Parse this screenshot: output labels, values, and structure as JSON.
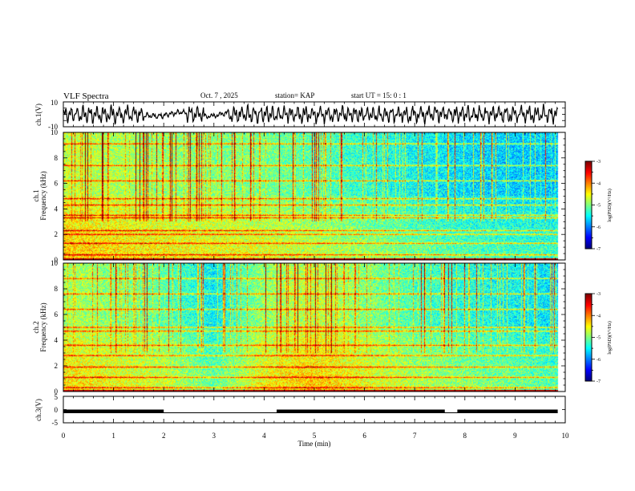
{
  "header": {
    "title": "VLF Spectra",
    "date": "Oct. 7 , 2025",
    "station": "station= KAP",
    "start": "start  UT =   15: 0  : 1"
  },
  "chart_data": {
    "type": "spectrogram",
    "x_axis": {
      "label": "Time  (min)",
      "range": [
        0,
        10
      ],
      "ticks": [
        "0",
        "1",
        "2",
        "3",
        "4",
        "5",
        "6",
        "7",
        "8",
        "9",
        "10"
      ],
      "data_end": 9.85
    },
    "panels": [
      {
        "id": "ch1-waveform",
        "type": "line",
        "ylabel": "ch.1(V)",
        "ylim": [
          -10,
          10
        ],
        "ticks": [
          "10",
          "-10"
        ],
        "quiet_intervals_min": [
          [
            1.65,
            2.45
          ],
          [
            2.8,
            3.3
          ]
        ]
      },
      {
        "id": "ch1-spectrogram",
        "type": "heatmap",
        "ylabel_channel": "ch.1",
        "ylabel": "Frequency  (kHz)",
        "ylim": [
          0,
          10
        ],
        "ticks": [
          "0",
          "2",
          "4",
          "6",
          "8",
          "10"
        ],
        "colorbar": {
          "label": "log(PSD)(V²/Hz)",
          "range": [
            -7,
            -3
          ],
          "ticks": [
            "-3",
            "-4",
            "-5",
            "-6",
            "-7"
          ]
        },
        "persistent_lines_khz": [
          0.4,
          1.3,
          2.0,
          2.3,
          3.3,
          3.5,
          4.3,
          4.8,
          6.2,
          7.4,
          9.1
        ],
        "base_level": [
          [
            0,
            -4.6
          ],
          [
            2,
            -4.8
          ],
          [
            4,
            -4.9
          ],
          [
            6,
            -5.2
          ],
          [
            8,
            -5.5
          ],
          [
            10,
            -5.6
          ]
        ]
      },
      {
        "id": "ch2-spectrogram",
        "type": "heatmap",
        "ylabel_channel": "ch.2",
        "ylabel": "Frequency  (kHz)",
        "ylim": [
          0,
          10
        ],
        "ticks": [
          "0",
          "2",
          "4",
          "6",
          "8",
          "10"
        ],
        "colorbar": {
          "label": "log(PSD)(V²/Hz)",
          "range": [
            -7,
            -3
          ],
          "ticks": [
            "-3",
            "-4",
            "-5",
            "-6",
            "-7"
          ]
        },
        "persistent_lines_khz": [
          0.3,
          1.1,
          1.9,
          2.8,
          3.6,
          4.7,
          5.0,
          6.4,
          7.6,
          8.8
        ],
        "base_level": [
          [
            0,
            -4.7
          ],
          [
            2,
            -5.0
          ],
          [
            3,
            -5.4
          ],
          [
            4,
            -4.8
          ],
          [
            5,
            -4.6
          ],
          [
            7,
            -5.1
          ],
          [
            10,
            -5.5
          ]
        ]
      },
      {
        "id": "ch3-digital",
        "type": "line",
        "ylabel": "ch.3(V)",
        "ylim": [
          -5,
          5
        ],
        "ticks": [
          "5",
          "0",
          "-5"
        ],
        "level_high_V": 0,
        "level_low_V": -1.2,
        "high_intervals_min": [
          [
            0,
            2.0
          ],
          [
            4.25,
            7.6
          ],
          [
            7.85,
            9.85
          ]
        ]
      }
    ]
  }
}
